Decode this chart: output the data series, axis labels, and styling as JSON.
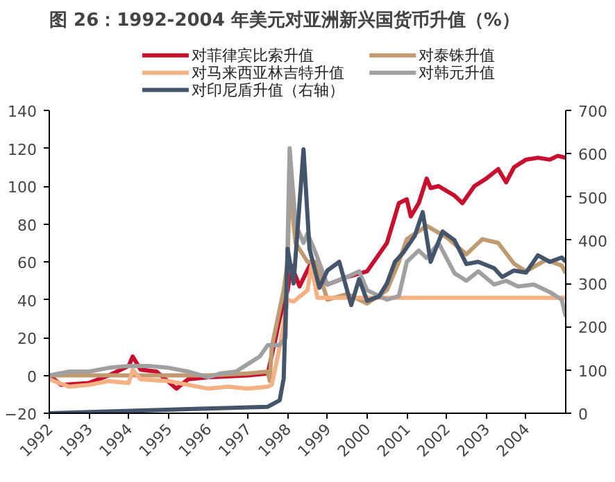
{
  "chart_data": {
    "type": "line",
    "title": "图 26：1992-2004 年美元对亚洲新兴国货币升值（%）",
    "xlim": [
      1992,
      2005
    ],
    "xticks": [
      1992,
      1993,
      1994,
      1995,
      1996,
      1997,
      1998,
      1999,
      2000,
      2001,
      2002,
      2003,
      2004
    ],
    "ylim": [
      -20,
      140
    ],
    "yticks": [
      -20,
      0,
      20,
      40,
      60,
      80,
      100,
      120,
      140
    ],
    "y2lim": [
      0,
      700
    ],
    "y2ticks": [
      0,
      100,
      200,
      300,
      400,
      500,
      600,
      700
    ],
    "legend": "top",
    "grid": false,
    "line_style": "solid",
    "series": [
      {
        "name": "对菲律宾比索升值",
        "color": "#c8102e",
        "x": [
          1992,
          1992.3,
          1993,
          1993.5,
          1994,
          1994.1,
          1994.3,
          1994.7,
          1995.2,
          1995.5,
          1996,
          1997,
          1997.5,
          1997.7,
          1997.8,
          1998,
          1998.1,
          1998.3,
          1998.6,
          1999,
          1999.5,
          2000,
          2000.5,
          2000.8,
          2001,
          2001.1,
          2001.3,
          2001.5,
          2001.6,
          2001.8,
          2002.2,
          2002.4,
          2002.7,
          2003,
          2003.3,
          2003.5,
          2003.7,
          2004,
          2004.3,
          2004.6,
          2004.8,
          2005
        ],
        "values": [
          0,
          -5,
          -4,
          0,
          5,
          10,
          3,
          2,
          -7,
          -2,
          -1,
          0,
          1,
          20,
          30,
          45,
          58,
          47,
          60,
          48,
          52,
          55,
          70,
          91,
          93,
          84,
          91,
          104,
          99,
          100,
          95,
          91,
          100,
          104,
          109,
          102,
          110,
          114,
          115,
          114,
          116,
          115
        ]
      },
      {
        "name": "对泰铢升值",
        "color": "#c09a70",
        "x": [
          1992,
          1993,
          1994,
          1995,
          1996,
          1997,
          1997.5,
          1997.55,
          1997.6,
          1997.9,
          1998,
          1998.05,
          1998.2,
          1998.5,
          1998.7,
          1999,
          1999.5,
          1999.8,
          2000,
          2000.5,
          2000.8,
          2001,
          2001.5,
          2002,
          2002.5,
          2002.9,
          2003.3,
          2003.7,
          2004,
          2004.5,
          2004.9,
          2005
        ],
        "values": [
          0,
          0,
          0,
          0,
          0,
          1,
          2,
          -3,
          15,
          45,
          60,
          100,
          70,
          60,
          60,
          40,
          43,
          40,
          38,
          45,
          60,
          72,
          79,
          73,
          64,
          72,
          70,
          59,
          55,
          61,
          58,
          54
        ]
      },
      {
        "name": "对马来西亚林吉特升值",
        "color": "#f4b183",
        "x": [
          1992,
          1992.5,
          1993,
          1993.5,
          1994,
          1994.1,
          1994.3,
          1995,
          1995.5,
          1996,
          1996.5,
          1997,
          1997.5,
          1997.6,
          1997.8,
          1998,
          1998.15,
          1998.5,
          1998.6,
          1998.75,
          1999,
          2000,
          2001,
          2002,
          2003,
          2004,
          2005
        ],
        "values": [
          -2,
          -6,
          -5,
          -3,
          -4,
          3,
          -2,
          -3,
          -5,
          -7,
          -6,
          -7,
          -6,
          -5,
          15,
          40,
          39,
          45,
          58,
          41,
          41,
          41,
          41,
          41,
          41,
          41,
          41
        ]
      },
      {
        "name": "对韩元升值",
        "color": "#a0a0a0",
        "x": [
          1992,
          1992.5,
          1993,
          1993.5,
          1994,
          1994.5,
          1995,
          1995.5,
          1996,
          1996.3,
          1996.7,
          1997,
          1997.3,
          1997.5,
          1997.8,
          1997.95,
          1998.05,
          1998.2,
          1998.4,
          1998.5,
          1998.7,
          1999,
          1999.5,
          1999.8,
          2000,
          2000.5,
          2000.8,
          2001,
          2001.3,
          2001.5,
          2001.8,
          2002.2,
          2002.5,
          2002.8,
          2003.2,
          2003.5,
          2003.8,
          2004.2,
          2004.6,
          2004.9,
          2005
        ],
        "values": [
          0,
          2,
          2,
          4,
          5,
          5,
          4,
          2,
          -1,
          1,
          2,
          6,
          10,
          16,
          16,
          20,
          120,
          80,
          70,
          75,
          65,
          48,
          52,
          55,
          45,
          40,
          42,
          60,
          66,
          62,
          70,
          54,
          50,
          55,
          48,
          50,
          47,
          48,
          44,
          40,
          31
        ]
      },
      {
        "name": "对印尼盾升值（右轴）",
        "color": "#44546a",
        "axis": "y2",
        "x": [
          1992,
          1997.5,
          1997.8,
          1997.9,
          1998,
          1998.15,
          1998.4,
          1998.55,
          1998.8,
          1999,
          1999.3,
          1999.6,
          1999.8,
          2000,
          2000.3,
          2000.5,
          2000.7,
          2000.9,
          2001.2,
          2001.4,
          2001.6,
          2001.9,
          2002.2,
          2002.5,
          2002.8,
          2003.2,
          2003.4,
          2003.7,
          2004,
          2004.3,
          2004.6,
          2004.9,
          2005
        ],
        "values": [
          0,
          15,
          30,
          80,
          380,
          300,
          610,
          380,
          290,
          330,
          350,
          250,
          310,
          260,
          270,
          300,
          350,
          370,
          410,
          465,
          350,
          420,
          400,
          345,
          350,
          335,
          315,
          330,
          325,
          365,
          350,
          360,
          350
        ]
      }
    ]
  }
}
